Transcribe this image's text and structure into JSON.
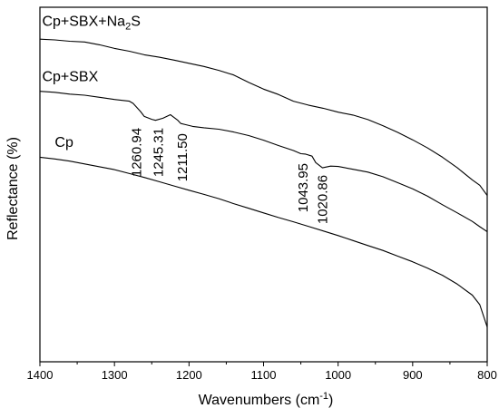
{
  "chart_data": {
    "type": "line",
    "title": "",
    "xlabel": "Wavenumbers (cm",
    "xlabel_sup": "-1",
    "xlabel_end": ")",
    "ylabel": "Reflectance (%)",
    "xlim": [
      1400,
      800
    ],
    "x_reversed": true,
    "ylim": [
      0,
      100
    ],
    "y_ticks_shown": false,
    "grid": false,
    "legend": "none",
    "x_ticks": [
      1400,
      1300,
      1200,
      1100,
      1000,
      900,
      800
    ],
    "x_tick_labels": [
      "1400",
      "1300",
      "1200",
      "1100",
      "1000",
      "900",
      "800"
    ],
    "series": [
      {
        "name": "Cp+SBX+Na",
        "name_sub": "2",
        "name_end": "S",
        "x": [
          1400,
          1380,
          1360,
          1340,
          1320,
          1300,
          1280,
          1260,
          1240,
          1220,
          1200,
          1180,
          1160,
          1140,
          1120,
          1100,
          1080,
          1060,
          1040,
          1020,
          1000,
          980,
          960,
          940,
          920,
          900,
          880,
          860,
          840,
          820,
          810,
          800
        ],
        "y": [
          91.0,
          90.8,
          90.4,
          90.2,
          89.4,
          88.4,
          87.6,
          86.6,
          85.9,
          85.1,
          84.2,
          83.3,
          82.2,
          80.9,
          78.8,
          76.9,
          75.4,
          73.5,
          72.4,
          71.5,
          70.4,
          69.6,
          68.3,
          66.6,
          64.7,
          62.6,
          60.3,
          57.7,
          54.7,
          51.3,
          49.8,
          46.9
        ]
      },
      {
        "name": "Cp+SBX",
        "x": [
          1400,
          1380,
          1360,
          1340,
          1320,
          1300,
          1280,
          1275,
          1265,
          1260,
          1250,
          1245,
          1235,
          1225,
          1215,
          1211,
          1205,
          1195,
          1180,
          1160,
          1140,
          1120,
          1100,
          1080,
          1060,
          1050,
          1044,
          1035,
          1030,
          1021,
          1010,
          1000,
          980,
          960,
          940,
          920,
          900,
          880,
          860,
          840,
          820,
          810,
          800
        ],
        "y": [
          76.3,
          76.0,
          75.5,
          75.2,
          74.6,
          74.0,
          73.5,
          72.9,
          70.6,
          69.2,
          68.4,
          68.1,
          68.7,
          69.7,
          68.1,
          67.2,
          66.9,
          66.4,
          66.0,
          65.6,
          64.8,
          63.8,
          62.5,
          61.0,
          59.6,
          58.7,
          58.6,
          58.0,
          56.2,
          54.7,
          55.2,
          55.1,
          54.3,
          53.5,
          52.2,
          50.5,
          48.8,
          46.7,
          44.3,
          42.0,
          39.6,
          38.1,
          36.7
        ]
      },
      {
        "name": "Cp",
        "x": [
          1400,
          1380,
          1360,
          1340,
          1320,
          1300,
          1280,
          1260,
          1240,
          1220,
          1200,
          1180,
          1160,
          1140,
          1120,
          1100,
          1080,
          1060,
          1040,
          1020,
          1000,
          980,
          960,
          940,
          920,
          900,
          880,
          860,
          840,
          820,
          810,
          800
        ],
        "y": [
          57.7,
          57.2,
          56.6,
          55.8,
          55.0,
          54.2,
          53.1,
          52.0,
          50.8,
          49.6,
          48.4,
          47.2,
          46.0,
          44.6,
          43.3,
          42.0,
          40.7,
          39.5,
          38.2,
          36.9,
          35.6,
          34.2,
          32.8,
          31.4,
          29.8,
          28.2,
          26.4,
          24.4,
          21.9,
          18.8,
          16.1,
          9.8
        ]
      }
    ],
    "annotations": [
      {
        "text": "1260.94",
        "x": 1264,
        "y": 66.0
      },
      {
        "text": "1245.31",
        "x": 1235,
        "y": 66.0
      },
      {
        "text": "1211.50",
        "x": 1203,
        "y": 64.4
      },
      {
        "text": "1043.95",
        "x": 1041,
        "y": 56.0
      },
      {
        "text": "1020.86",
        "x": 1015,
        "y": 52.7
      }
    ],
    "series_label_positions": [
      {
        "x": 1397,
        "y": 94.8
      },
      {
        "x": 1397,
        "y": 79.2
      },
      {
        "x": 1380,
        "y": 60.6
      }
    ]
  }
}
